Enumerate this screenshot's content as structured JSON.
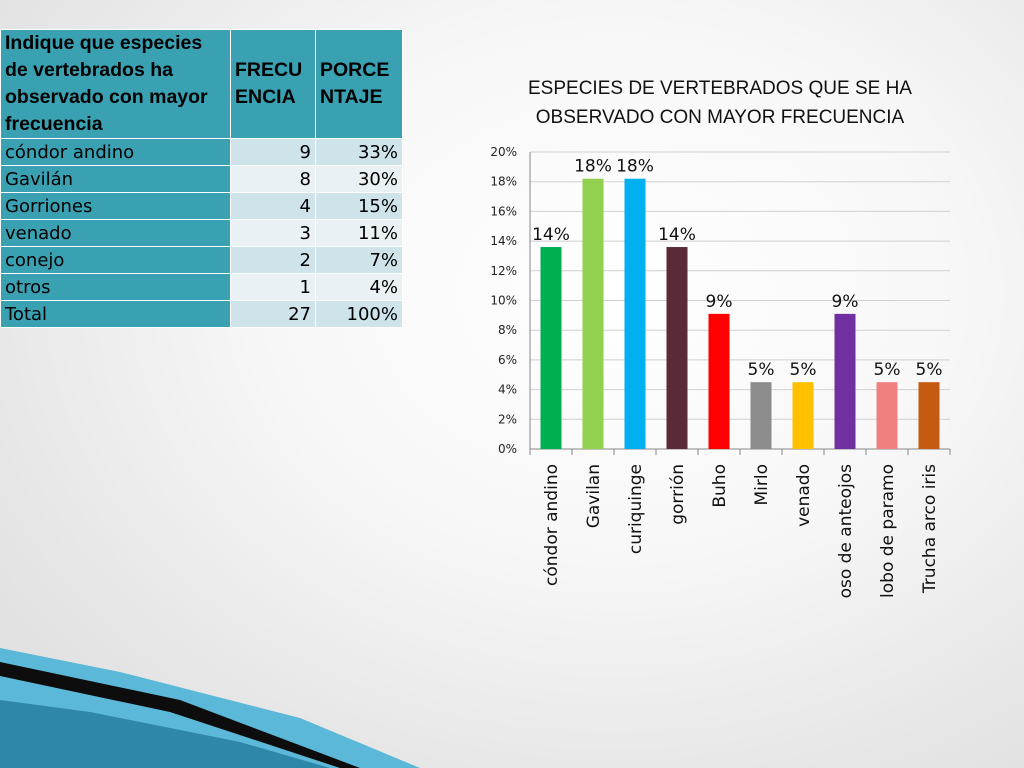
{
  "table": {
    "headers": [
      "Indique que especies de vertebrados ha observado con mayor frecuencia",
      "FRECUENCIA",
      "PORCENTAJE"
    ],
    "rows": [
      {
        "name": "cóndor andino",
        "freq": "9",
        "pct": "33%"
      },
      {
        "name": "Gavilán",
        "freq": "8",
        "pct": "30%"
      },
      {
        "name": "Gorriones",
        "freq": "4",
        "pct": "15%"
      },
      {
        "name": "venado",
        "freq": "3",
        "pct": "11%"
      },
      {
        "name": "conejo",
        "freq": "2",
        "pct": "7%"
      },
      {
        "name": "otros",
        "freq": "1",
        "pct": "4%"
      },
      {
        "name": "Total",
        "freq": "27",
        "pct": "100%"
      }
    ]
  },
  "chart_data": {
    "type": "bar",
    "title": "ESPECIES DE VERTEBRADOS QUE SE HA OBSERVADO CON MAYOR FRECUENCIA",
    "categories": [
      "cóndor andino",
      "Gavilan",
      "curiquinge",
      "gorrión",
      "Buho",
      "Mirlo",
      "venado",
      "oso de anteojos",
      "lobo de paramo",
      "Trucha arco iris"
    ],
    "values": [
      14,
      18,
      18,
      14,
      9,
      5,
      5,
      9,
      5,
      5
    ],
    "data_labels": [
      "14%",
      "18%",
      "18%",
      "14%",
      "9%",
      "5%",
      "5%",
      "9%",
      "5%",
      "5%"
    ],
    "bar_heights_pct": [
      13.6,
      18.2,
      18.2,
      13.6,
      9.1,
      4.5,
      4.5,
      9.1,
      4.5,
      4.5
    ],
    "colors": [
      "#00b050",
      "#92d050",
      "#00b0f0",
      "#5a2a36",
      "#ff0000",
      "#8c8c8c",
      "#ffc000",
      "#7030a0",
      "#f08080",
      "#c55a11"
    ],
    "yticks": [
      "0%",
      "2%",
      "4%",
      "6%",
      "8%",
      "10%",
      "12%",
      "14%",
      "16%",
      "18%",
      "20%"
    ],
    "ylim": [
      0,
      20
    ],
    "grid": true,
    "legend": "none"
  }
}
